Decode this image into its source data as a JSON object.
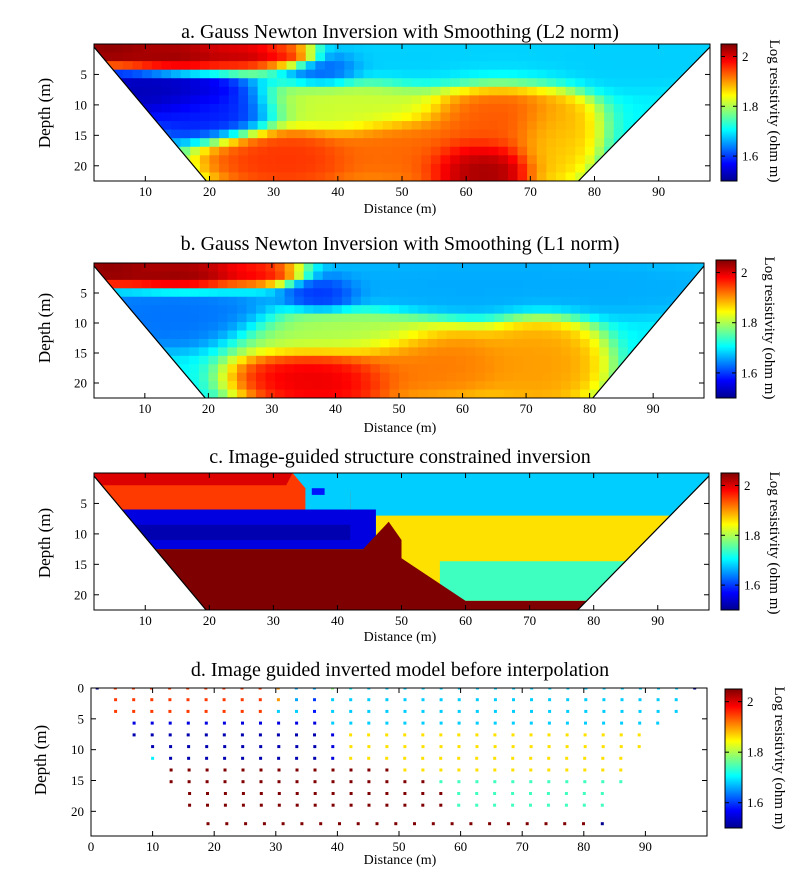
{
  "colors": {
    "colormap": [
      "#00008f",
      "#0000ff",
      "#007fff",
      "#00ffff",
      "#7fff7f",
      "#ffff00",
      "#ff7f00",
      "#ff0000",
      "#7f0000"
    ],
    "triangle_fill": "#ffffff",
    "frame": "#000000"
  },
  "chart_data": [
    {
      "type": "heatmap",
      "title": "a. Gauss Newton Inversion with Smoothing (L2 norm)",
      "xlabel": "Distance (m)",
      "ylabel": "Depth (m)",
      "xlim": [
        2,
        98
      ],
      "ylim": [
        22.5,
        0
      ],
      "xticks": [
        "10",
        "20",
        "30",
        "40",
        "50",
        "60",
        "70",
        "80",
        "90"
      ],
      "yticks": [
        "5",
        "10",
        "15",
        "20"
      ],
      "colorbar": {
        "label": "Log resistivity (ohm m)",
        "range": [
          1.5,
          2.05
        ],
        "ticks": [
          "1.6",
          "1.8",
          "2"
        ]
      },
      "masked_regions": [
        {
          "name": "left",
          "points": [
            [
              2,
              0.5
            ],
            [
              2,
              22.5
            ],
            [
              19.5,
              22.5
            ]
          ]
        },
        {
          "name": "right",
          "points": [
            [
              98,
              0.5
            ],
            [
              98,
              22.5
            ],
            [
              77.5,
              22.5
            ]
          ]
        }
      ],
      "blobs": [
        {
          "x": 4,
          "y": 1,
          "value": 2.05,
          "sx": 5,
          "sy": 1.6
        },
        {
          "x": 15,
          "y": 2,
          "value": 2.05,
          "sx": 7,
          "sy": 1.8
        },
        {
          "x": 27,
          "y": 2,
          "value": 2.05,
          "sx": 6,
          "sy": 1.6
        },
        {
          "x": 33,
          "y": 2,
          "value": 2.0,
          "sx": 3,
          "sy": 1.2
        },
        {
          "x": 12,
          "y": 8,
          "value": 1.52,
          "sx": 8,
          "sy": 2.5
        },
        {
          "x": 20,
          "y": 11,
          "value": 1.58,
          "sx": 7,
          "sy": 3
        },
        {
          "x": 38,
          "y": 4,
          "value": 1.6,
          "sx": 4,
          "sy": 2
        },
        {
          "x": 62,
          "y": 3,
          "value": 1.68,
          "sx": 25,
          "sy": 3
        },
        {
          "x": 88,
          "y": 2,
          "value": 1.68,
          "sx": 8,
          "sy": 2
        },
        {
          "x": 42,
          "y": 10,
          "value": 1.82,
          "sx": 10,
          "sy": 3
        },
        {
          "x": 65,
          "y": 13,
          "value": 1.94,
          "sx": 8,
          "sy": 5
        },
        {
          "x": 32,
          "y": 19,
          "value": 1.96,
          "sx": 8,
          "sy": 3.5
        },
        {
          "x": 50,
          "y": 18,
          "value": 1.93,
          "sx": 8,
          "sy": 4
        },
        {
          "x": 62,
          "y": 20,
          "value": 2.05,
          "sx": 6,
          "sy": 3
        },
        {
          "x": 73,
          "y": 16,
          "value": 1.87,
          "sx": 4,
          "sy": 5
        }
      ]
    },
    {
      "type": "heatmap",
      "title": "b. Gauss Newton Inversion with Smoothing (L1 norm)",
      "xlabel": "Distance (m)",
      "ylabel": "Depth (m)",
      "xlim": [
        2,
        98
      ],
      "ylim": [
        22.5,
        0
      ],
      "xticks": [
        "10",
        "20",
        "30",
        "40",
        "50",
        "60",
        "70",
        "80",
        "90"
      ],
      "yticks": [
        "5",
        "10",
        "15",
        "20"
      ],
      "colorbar": {
        "label": "Log resistivity (ohm m)",
        "range": [
          1.5,
          2.05
        ],
        "ticks": [
          "1.6",
          "1.8",
          "2"
        ]
      },
      "masked_regions": [
        {
          "name": "left",
          "points": [
            [
              2,
              0.5
            ],
            [
              2,
              22.5
            ],
            [
              19.5,
              22.5
            ]
          ]
        },
        {
          "name": "right",
          "points": [
            [
              98,
              0.5
            ],
            [
              98,
              22.5
            ],
            [
              80.5,
              22.5
            ]
          ]
        }
      ],
      "blobs": [
        {
          "x": 4,
          "y": 1.2,
          "value": 2.05,
          "sx": 5,
          "sy": 1.5
        },
        {
          "x": 16,
          "y": 2,
          "value": 2.05,
          "sx": 8,
          "sy": 1.6
        },
        {
          "x": 28,
          "y": 2,
          "value": 2.0,
          "sx": 5,
          "sy": 1.4
        },
        {
          "x": 38,
          "y": 5,
          "value": 1.58,
          "sx": 4,
          "sy": 2
        },
        {
          "x": 15,
          "y": 9,
          "value": 1.63,
          "sx": 10,
          "sy": 3
        },
        {
          "x": 65,
          "y": 4,
          "value": 1.66,
          "sx": 25,
          "sy": 3
        },
        {
          "x": 40,
          "y": 12,
          "value": 1.8,
          "sx": 10,
          "sy": 3
        },
        {
          "x": 38,
          "y": 19,
          "value": 2.0,
          "sx": 8,
          "sy": 3.5
        },
        {
          "x": 55,
          "y": 17,
          "value": 1.92,
          "sx": 10,
          "sy": 4
        },
        {
          "x": 72,
          "y": 17,
          "value": 1.9,
          "sx": 6,
          "sy": 5
        }
      ]
    },
    {
      "type": "heatmap",
      "title": "c. Image-guided structure constrained inversion",
      "xlabel": "Distance (m)",
      "ylabel": "Depth (m)",
      "xlim": [
        2,
        98
      ],
      "ylim": [
        22.5,
        0
      ],
      "xticks": [
        "10",
        "20",
        "30",
        "40",
        "50",
        "60",
        "70",
        "80",
        "90"
      ],
      "yticks": [
        "5",
        "10",
        "15",
        "20"
      ],
      "colorbar": {
        "label": "Log resistivity (ohm m)",
        "range": [
          1.5,
          2.05
        ],
        "ticks": [
          "1.6",
          "1.8",
          "2"
        ]
      },
      "masked_regions": [
        {
          "name": "left",
          "points": [
            [
              2,
              0.5
            ],
            [
              2,
              22.5
            ],
            [
              19.5,
              22.5
            ]
          ]
        },
        {
          "name": "right",
          "points": [
            [
              98,
              0.5
            ],
            [
              98,
              22.5
            ],
            [
              77.5,
              22.5
            ]
          ]
        }
      ],
      "zones": [
        {
          "value": 1.68,
          "points": [
            [
              2,
              0
            ],
            [
              98,
              0
            ],
            [
              98,
              22.5
            ],
            [
              2,
              22.5
            ]
          ]
        },
        {
          "value": 1.86,
          "points": [
            [
              46,
              7
            ],
            [
              98,
              7
            ],
            [
              98,
              22.5
            ],
            [
              46,
              22.5
            ]
          ]
        },
        {
          "value": 1.74,
          "points": [
            [
              56,
              14.5
            ],
            [
              98,
              14.5
            ],
            [
              98,
              21
            ],
            [
              56,
              21
            ]
          ]
        },
        {
          "value": 1.95,
          "points": [
            [
              2,
              0
            ],
            [
              33,
              0
            ],
            [
              35,
              2.5
            ],
            [
              42,
              3
            ],
            [
              42,
              6
            ],
            [
              2,
              6
            ]
          ]
        },
        {
          "value": 2.0,
          "points": [
            [
              2,
              0
            ],
            [
              33,
              0
            ],
            [
              32,
              2
            ],
            [
              2,
              2
            ]
          ]
        },
        {
          "value": 1.68,
          "points": [
            [
              35,
              2.5
            ],
            [
              42,
              2.5
            ],
            [
              42,
              6
            ],
            [
              35,
              6
            ]
          ]
        },
        {
          "value": 1.55,
          "points": [
            [
              2,
              6
            ],
            [
              46,
              6
            ],
            [
              46,
              12.5
            ],
            [
              2,
              12.5
            ]
          ]
        },
        {
          "value": 1.52,
          "points": [
            [
              2,
              8.5
            ],
            [
              42,
              8.5
            ],
            [
              42,
              11
            ],
            [
              2,
              11
            ]
          ]
        },
        {
          "value": 2.05,
          "points": [
            [
              2,
              12.5
            ],
            [
              44,
              12.5
            ],
            [
              48,
              8
            ],
            [
              50,
              11
            ],
            [
              50,
              14
            ],
            [
              60,
              21
            ],
            [
              98,
              21
            ],
            [
              98,
              22.5
            ],
            [
              2,
              22.5
            ]
          ]
        },
        {
          "value": 1.58,
          "points": [
            [
              36,
              2.5
            ],
            [
              38,
              2.5
            ],
            [
              38,
              3.6
            ],
            [
              36,
              3.6
            ]
          ]
        }
      ]
    },
    {
      "type": "scatter",
      "title": "d. Image guided inverted model before interpolation",
      "xlabel": "Distance (m)",
      "ylabel": "Depth (m)",
      "xlim": [
        0,
        100
      ],
      "ylim": [
        24,
        0
      ],
      "xticks": [
        "0",
        "10",
        "20",
        "30",
        "40",
        "50",
        "60",
        "70",
        "80",
        "90"
      ],
      "yticks": [
        "0",
        "5",
        "10",
        "15",
        "20"
      ],
      "colorbar": {
        "label": "Log resistivity (ohm m)",
        "range": [
          1.5,
          2.05
        ],
        "ticks": [
          "1.6",
          "1.8",
          "2"
        ]
      },
      "rows": [
        {
          "depth": 0.0,
          "x_start": 1,
          "x_end": 98,
          "values": [
            1.5,
            1.95,
            1.95,
            1.95,
            1.95,
            1.95,
            1.95,
            1.95,
            1.95,
            1.95,
            1.9,
            1.66,
            1.66,
            1.78,
            1.7,
            1.68,
            1.68,
            1.68,
            1.68,
            1.68,
            1.68,
            1.68,
            1.68,
            1.68,
            1.68,
            1.68,
            1.68,
            1.68,
            1.68,
            1.68,
            1.68,
            1.68,
            1.68,
            1.5
          ]
        },
        {
          "depth": 1.9,
          "x_start": 4,
          "x_end": 95,
          "values": [
            1.95,
            1.95,
            1.95,
            1.95,
            1.95,
            1.95,
            1.95,
            1.95,
            1.95,
            1.9,
            1.66,
            1.6,
            1.68,
            1.68,
            1.68,
            1.68,
            1.68,
            1.68,
            1.68,
            1.68,
            1.68,
            1.68,
            1.68,
            1.68,
            1.68,
            1.68,
            1.68,
            1.68,
            1.68,
            1.68,
            1.68,
            1.68
          ]
        },
        {
          "depth": 3.8,
          "x_start": 4,
          "x_end": 95,
          "values": [
            1.95,
            1.95,
            1.95,
            1.95,
            1.95,
            1.95,
            1.95,
            1.95,
            1.95,
            1.68,
            1.68,
            1.58,
            1.68,
            1.68,
            1.68,
            1.68,
            1.68,
            1.68,
            1.68,
            1.68,
            1.68,
            1.68,
            1.68,
            1.68,
            1.68,
            1.68,
            1.68,
            1.68,
            1.68,
            1.68,
            1.68,
            1.68
          ]
        },
        {
          "depth": 5.7,
          "x_start": 7,
          "x_end": 92,
          "values": [
            1.55,
            1.55,
            1.55,
            1.55,
            1.55,
            1.55,
            1.55,
            1.55,
            1.55,
            1.55,
            1.55,
            1.68,
            1.68,
            1.68,
            1.68,
            1.68,
            1.68,
            1.68,
            1.68,
            1.68,
            1.68,
            1.68,
            1.68,
            1.68,
            1.68,
            1.68,
            1.68,
            1.68,
            1.68,
            1.68
          ]
        },
        {
          "depth": 7.6,
          "x_start": 7,
          "x_end": 89,
          "values": [
            1.52,
            1.52,
            1.52,
            1.52,
            1.52,
            1.52,
            1.52,
            1.52,
            1.52,
            1.52,
            1.52,
            1.55,
            1.86,
            1.86,
            1.86,
            1.86,
            1.86,
            1.86,
            1.86,
            1.86,
            1.86,
            1.86,
            1.86,
            1.86,
            1.86,
            1.86,
            1.86,
            1.86,
            1.86
          ]
        },
        {
          "depth": 9.5,
          "x_start": 10,
          "x_end": 89,
          "values": [
            1.52,
            1.52,
            1.52,
            1.52,
            1.52,
            1.52,
            1.52,
            1.52,
            1.52,
            1.52,
            1.55,
            1.86,
            1.86,
            1.86,
            1.86,
            1.86,
            1.86,
            1.86,
            1.86,
            1.86,
            1.86,
            1.86,
            1.86,
            1.86,
            1.86,
            1.86,
            1.86,
            1.86
          ]
        },
        {
          "depth": 11.4,
          "x_start": 10,
          "x_end": 86,
          "values": [
            1.7,
            1.52,
            1.52,
            1.52,
            1.52,
            1.52,
            1.52,
            1.52,
            1.52,
            1.52,
            1.55,
            1.86,
            1.86,
            1.86,
            1.86,
            1.86,
            1.86,
            1.86,
            1.86,
            1.86,
            1.86,
            1.86,
            1.86,
            1.86,
            1.86,
            1.86,
            1.86
          ]
        },
        {
          "depth": 13.3,
          "x_start": 13,
          "x_end": 86,
          "values": [
            2.05,
            2.05,
            2.05,
            2.05,
            2.05,
            2.05,
            2.05,
            2.05,
            2.05,
            2.05,
            2.05,
            2.05,
            2.05,
            1.86,
            1.86,
            1.86,
            1.86,
            1.86,
            1.86,
            1.86,
            1.86,
            1.86,
            1.86,
            1.86,
            1.86,
            1.86
          ]
        },
        {
          "depth": 15.2,
          "x_start": 13,
          "x_end": 86,
          "values": [
            2.05,
            2.05,
            2.05,
            2.05,
            2.05,
            2.05,
            2.05,
            2.05,
            2.05,
            2.05,
            2.05,
            2.05,
            2.05,
            2.05,
            2.05,
            1.74,
            1.74,
            1.74,
            1.74,
            1.74,
            1.74,
            1.74,
            1.74,
            1.74,
            1.74,
            1.74
          ]
        },
        {
          "depth": 17.1,
          "x_start": 16,
          "x_end": 83,
          "values": [
            2.05,
            2.05,
            2.05,
            2.05,
            2.05,
            2.05,
            2.05,
            2.05,
            2.05,
            2.05,
            2.05,
            2.05,
            2.05,
            2.05,
            2.05,
            1.74,
            1.74,
            1.74,
            1.74,
            1.74,
            1.74,
            1.74,
            1.74,
            1.74
          ]
        },
        {
          "depth": 19.0,
          "x_start": 16,
          "x_end": 83,
          "values": [
            2.05,
            2.05,
            2.05,
            2.05,
            2.05,
            2.05,
            2.05,
            2.05,
            2.05,
            2.05,
            2.05,
            2.05,
            2.05,
            2.05,
            2.05,
            1.74,
            1.74,
            1.74,
            1.74,
            1.74,
            1.74,
            1.74,
            1.74,
            1.74
          ]
        },
        {
          "depth": 22.0,
          "x_start": 19,
          "x_end": 83,
          "values": [
            2.05,
            2.05,
            2.05,
            2.05,
            2.05,
            2.05,
            2.05,
            2.05,
            2.05,
            2.05,
            2.05,
            2.05,
            2.05,
            2.05,
            2.05,
            2.05,
            2.05,
            2.05,
            2.05,
            2.05,
            2.05,
            1.5
          ]
        }
      ]
    }
  ]
}
